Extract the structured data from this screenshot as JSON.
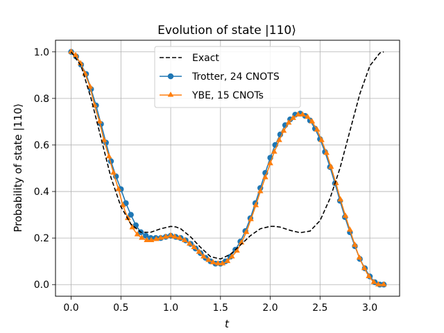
{
  "chart_data": {
    "type": "line",
    "title": "Evolution of state |110⟩",
    "xlabel": "t",
    "ylabel": "Probability of state |110⟩",
    "xlim": [
      -0.157,
      3.299
    ],
    "ylim": [
      -0.05,
      1.05
    ],
    "xticks": [
      0.0,
      0.5,
      1.0,
      1.5,
      2.0,
      2.5,
      3.0
    ],
    "yticks": [
      0.0,
      0.2,
      0.4,
      0.6,
      0.8,
      1.0
    ],
    "grid": true,
    "legend_position": "top-center",
    "series": [
      {
        "name": "Exact",
        "style": "dashed",
        "color": "#000000",
        "x": [
          0.0,
          0.1,
          0.2,
          0.3,
          0.4,
          0.5,
          0.6,
          0.7,
          0.8,
          0.9,
          1.0,
          1.05,
          1.1,
          1.2,
          1.3,
          1.4,
          1.5,
          1.6,
          1.7,
          1.8,
          1.9,
          2.0,
          2.05,
          2.1,
          2.2,
          2.3,
          2.4,
          2.5,
          2.6,
          2.7,
          2.8,
          2.9,
          3.0,
          3.1,
          3.14
        ],
        "y": [
          1.0,
          0.94,
          0.8,
          0.63,
          0.46,
          0.335,
          0.26,
          0.225,
          0.225,
          0.24,
          0.25,
          0.248,
          0.24,
          0.205,
          0.16,
          0.12,
          0.11,
          0.13,
          0.17,
          0.21,
          0.24,
          0.25,
          0.25,
          0.247,
          0.233,
          0.223,
          0.23,
          0.275,
          0.37,
          0.5,
          0.66,
          0.82,
          0.94,
          0.995,
          1.0
        ]
      },
      {
        "name": "Trotter, 24 CNOTS",
        "style": "circle",
        "color": "#1f77b4",
        "x": [
          0.0,
          0.05,
          0.1,
          0.15,
          0.2,
          0.25,
          0.3,
          0.35,
          0.4,
          0.45,
          0.5,
          0.55,
          0.6,
          0.65,
          0.7,
          0.75,
          0.8,
          0.85,
          0.9,
          0.95,
          1.0,
          1.05,
          1.1,
          1.15,
          1.2,
          1.25,
          1.3,
          1.35,
          1.4,
          1.45,
          1.5,
          1.55,
          1.6,
          1.65,
          1.7,
          1.75,
          1.8,
          1.85,
          1.9,
          1.95,
          2.0,
          2.05,
          2.1,
          2.15,
          2.2,
          2.25,
          2.3,
          2.35,
          2.4,
          2.45,
          2.5,
          2.55,
          2.6,
          2.65,
          2.7,
          2.75,
          2.8,
          2.85,
          2.9,
          2.95,
          3.0,
          3.05,
          3.1,
          3.14
        ],
        "y": [
          1.0,
          0.98,
          0.945,
          0.905,
          0.84,
          0.77,
          0.69,
          0.61,
          0.53,
          0.465,
          0.41,
          0.35,
          0.3,
          0.255,
          0.225,
          0.21,
          0.2,
          0.2,
          0.2,
          0.205,
          0.21,
          0.205,
          0.2,
          0.19,
          0.175,
          0.155,
          0.135,
          0.115,
          0.1,
          0.09,
          0.09,
          0.1,
          0.12,
          0.15,
          0.185,
          0.23,
          0.285,
          0.35,
          0.415,
          0.48,
          0.545,
          0.6,
          0.645,
          0.685,
          0.71,
          0.73,
          0.735,
          0.725,
          0.705,
          0.67,
          0.625,
          0.57,
          0.505,
          0.435,
          0.36,
          0.29,
          0.225,
          0.165,
          0.11,
          0.07,
          0.035,
          0.01,
          0.0,
          0.0
        ]
      },
      {
        "name": "YBE, 15 CNOTs",
        "style": "triangle",
        "color": "#ff7f0e",
        "x": [
          0.0,
          0.045,
          0.095,
          0.14,
          0.19,
          0.235,
          0.285,
          0.33,
          0.38,
          0.425,
          0.475,
          0.52,
          0.57,
          0.615,
          0.665,
          0.71,
          0.76,
          0.805,
          0.855,
          0.9,
          0.95,
          1.0,
          1.04,
          1.09,
          1.14,
          1.19,
          1.235,
          1.285,
          1.33,
          1.38,
          1.425,
          1.475,
          1.52,
          1.57,
          1.615,
          1.665,
          1.71,
          1.76,
          1.805,
          1.855,
          1.9,
          1.95,
          2.0,
          2.04,
          2.09,
          2.135,
          2.185,
          2.23,
          2.28,
          2.325,
          2.375,
          2.42,
          2.47,
          2.515,
          2.565,
          2.61,
          2.66,
          2.705,
          2.755,
          2.8,
          2.85,
          2.895,
          2.945,
          2.99,
          3.04,
          3.085,
          3.14
        ],
        "y": [
          1.0,
          0.985,
          0.95,
          0.905,
          0.85,
          0.77,
          0.7,
          0.62,
          0.55,
          0.48,
          0.41,
          0.34,
          0.285,
          0.245,
          0.215,
          0.2,
          0.19,
          0.19,
          0.195,
          0.2,
          0.205,
          0.21,
          0.205,
          0.2,
          0.19,
          0.175,
          0.16,
          0.14,
          0.12,
          0.105,
          0.095,
          0.09,
          0.09,
          0.1,
          0.12,
          0.145,
          0.18,
          0.225,
          0.28,
          0.34,
          0.4,
          0.46,
          0.52,
          0.57,
          0.62,
          0.66,
          0.695,
          0.715,
          0.73,
          0.73,
          0.72,
          0.7,
          0.665,
          0.62,
          0.565,
          0.505,
          0.435,
          0.365,
          0.295,
          0.235,
          0.17,
          0.115,
          0.07,
          0.035,
          0.01,
          0.0,
          0.0
        ]
      }
    ]
  }
}
